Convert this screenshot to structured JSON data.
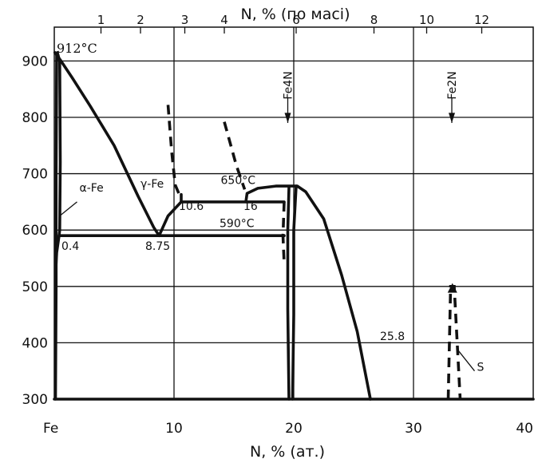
{
  "chart_data": {
    "type": "line",
    "title": "",
    "xlabel": "N, % (ат.)",
    "x2label": "N, % (по масі)",
    "ylabel": "",
    "xlim": [
      0,
      40
    ],
    "ylim": [
      300,
      960
    ],
    "grid": true,
    "x_ticks": [
      {
        "value": 0,
        "label": "Fe"
      },
      {
        "value": 10,
        "label": "10"
      },
      {
        "value": 20,
        "label": "20"
      },
      {
        "value": 30,
        "label": "30"
      },
      {
        "value": 40,
        "label": "40"
      }
    ],
    "y_ticks": [
      300,
      400,
      500,
      600,
      700,
      800,
      900
    ],
    "top_ticks": [
      {
        "x_at": 3.9,
        "label": "1"
      },
      {
        "value_at": 7.2,
        "label": "2"
      },
      {
        "x_at": 10.9,
        "label": "3"
      },
      {
        "x_at": 14.2,
        "label": "4"
      },
      {
        "x_at": 20.2,
        "label": "6"
      },
      {
        "x_at": 26.7,
        "label": "8"
      },
      {
        "x_at": 31.1,
        "label": "10"
      },
      {
        "x_at": 35.7,
        "label": "12"
      }
    ],
    "series": [
      {
        "kind": "solid",
        "points": [
          [
            0.05,
            915
          ],
          [
            0.5,
            902
          ],
          [
            1.5,
            870
          ],
          [
            3,
            820
          ],
          [
            5,
            750
          ],
          [
            7,
            660
          ],
          [
            8.3,
            605
          ],
          [
            8.75,
            590
          ]
        ]
      },
      {
        "kind": "solid",
        "points": [
          [
            0.25,
            915
          ],
          [
            0.45,
            900
          ],
          [
            0.5,
            720
          ],
          [
            0.45,
            600
          ],
          [
            0.4,
            590
          ]
        ]
      },
      {
        "kind": "solid",
        "points": [
          [
            0.2,
            910
          ],
          [
            0.15,
            700
          ],
          [
            0.15,
            500
          ],
          [
            0.1,
            300
          ]
        ]
      },
      {
        "kind": "solid",
        "points": [
          [
            0.1,
            520
          ],
          [
            0.2,
            560
          ],
          [
            0.4,
            590
          ]
        ]
      },
      {
        "kind": "solid",
        "points": [
          [
            8.75,
            590
          ],
          [
            9.5,
            625
          ],
          [
            10.6,
            650
          ],
          [
            10.6,
            663
          ]
        ]
      },
      {
        "kind": "solid",
        "points": [
          [
            0.4,
            590
          ],
          [
            19.2,
            590
          ]
        ]
      },
      {
        "kind": "solid",
        "points": [
          [
            10.6,
            650
          ],
          [
            19.2,
            650
          ]
        ]
      },
      {
        "kind": "solid",
        "points": [
          [
            16,
            650
          ],
          [
            16.1,
            665
          ],
          [
            17,
            674
          ],
          [
            18.5,
            678
          ],
          [
            20.3,
            678
          ],
          [
            21,
            668
          ],
          [
            22.5,
            620
          ],
          [
            24,
            520
          ],
          [
            25.3,
            420
          ],
          [
            26.4,
            300
          ]
        ]
      },
      {
        "kind": "solid",
        "points": [
          [
            19.6,
            675
          ],
          [
            19.5,
            600
          ],
          [
            19.5,
            460
          ],
          [
            19.6,
            300
          ]
        ]
      },
      {
        "kind": "solid",
        "points": [
          [
            20.2,
            678
          ],
          [
            20.0,
            600
          ],
          [
            20.0,
            450
          ],
          [
            19.9,
            300
          ]
        ]
      },
      {
        "kind": "solid",
        "points": [
          [
            0,
            300
          ],
          [
            40,
            300
          ]
        ]
      },
      {
        "kind": "dashed",
        "points": [
          [
            9.5,
            822
          ],
          [
            9.8,
            740
          ],
          [
            10.1,
            680
          ],
          [
            10.5,
            660
          ]
        ]
      },
      {
        "kind": "dashed",
        "points": [
          [
            14.2,
            792
          ],
          [
            15.2,
            715
          ],
          [
            15.9,
            672
          ]
        ]
      },
      {
        "kind": "dashed",
        "points": [
          [
            19.2,
            650
          ],
          [
            19.1,
            590
          ],
          [
            19.2,
            540
          ]
        ]
      },
      {
        "kind": "dashed",
        "points": [
          [
            32.9,
            300
          ],
          [
            33.1,
            500
          ],
          [
            33.4,
            500
          ],
          [
            33.9,
            300
          ]
        ]
      }
    ],
    "annotations": [
      {
        "text": "912°C",
        "x": 0.2,
        "y": 915
      },
      {
        "text": "α-Fe",
        "x": 2.1,
        "y": 668
      },
      {
        "text": "γ-Fe",
        "x": 7.2,
        "y": 675
      },
      {
        "text": "650°C",
        "x": 13.9,
        "y": 682
      },
      {
        "text": "10.6",
        "x": 10.4,
        "y": 636
      },
      {
        "text": "16",
        "x": 15.8,
        "y": 636
      },
      {
        "text": "590°C",
        "x": 13.8,
        "y": 605
      },
      {
        "text": "0.4",
        "x": 0.6,
        "y": 565
      },
      {
        "text": "8.75",
        "x": 7.6,
        "y": 565
      },
      {
        "text": "25.8",
        "x": 27.2,
        "y": 405
      },
      {
        "text": "S",
        "x": 35.3,
        "y": 350
      },
      {
        "text": "Fe4N",
        "x": 19.5,
        "y": 800
      },
      {
        "text": "Fe2N",
        "x": 33.2,
        "y": 800
      }
    ]
  }
}
